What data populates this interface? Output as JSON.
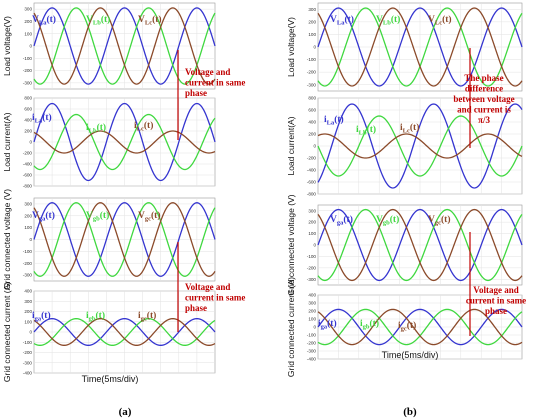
{
  "colors": {
    "phase_a": "#3535d0",
    "phase_b": "#3fd83f",
    "phase_c": "#8b4a2a",
    "annotation": "#c00000"
  },
  "chart_data": [
    {
      "type": "figure-panel",
      "caption": "(a)",
      "xlabel": "Time(5ms/div)",
      "plots": [
        {
          "type": "line",
          "ylabel": "Load voltage(V)",
          "ylim": [
            -350,
            350
          ],
          "yticks": [
            -300,
            -200,
            -100,
            0,
            100,
            200,
            300
          ],
          "phase_shift_deg": 0,
          "series": [
            {
              "name": "V",
              "sub": "La",
              "suffix": "(t)",
              "color_key": "phase_a",
              "amplitude": 310,
              "phase_deg": 0
            },
            {
              "name": "V",
              "sub": "Lb",
              "suffix": "(t)",
              "color_key": "phase_b",
              "amplitude": 310,
              "phase_deg": -120
            },
            {
              "name": "V",
              "sub": "Lc",
              "suffix": "(t)",
              "color_key": "phase_c",
              "amplitude": 310,
              "phase_deg": 120
            }
          ],
          "annotation": [
            "Voltage and",
            "current in same",
            "phase"
          ]
        },
        {
          "type": "line",
          "ylabel": "Load current(A)",
          "ylim": [
            -800,
            800
          ],
          "yticks": [
            -800,
            -600,
            -400,
            -200,
            0,
            200,
            400,
            600,
            800
          ],
          "phase_shift_deg": 0,
          "series": [
            {
              "name": "i",
              "sub": "La",
              "suffix": "(t)",
              "color_key": "phase_a",
              "amplitude": 700,
              "phase_deg": 0
            },
            {
              "name": "i",
              "sub": "Lb",
              "suffix": "(t)",
              "color_key": "phase_b",
              "amplitude": 500,
              "phase_deg": -120
            },
            {
              "name": "i",
              "sub": "Lc",
              "suffix": "(t)",
              "color_key": "phase_c",
              "amplitude": 200,
              "phase_deg": 120
            }
          ]
        },
        {
          "type": "line",
          "ylabel": "Grid connected voltage (V)",
          "ylim": [
            -350,
            350
          ],
          "yticks": [
            -300,
            -200,
            -100,
            0,
            100,
            200,
            300
          ],
          "phase_shift_deg": 0,
          "series": [
            {
              "name": "V",
              "sub": "ga",
              "suffix": "(t)",
              "color_key": "phase_a",
              "amplitude": 310,
              "phase_deg": 0
            },
            {
              "name": "V",
              "sub": "gb",
              "suffix": "(t)",
              "color_key": "phase_b",
              "amplitude": 310,
              "phase_deg": -120
            },
            {
              "name": "V",
              "sub": "gc",
              "suffix": "(t)",
              "color_key": "phase_c",
              "amplitude": 310,
              "phase_deg": 120
            }
          ]
        },
        {
          "type": "line",
          "ylabel": "Grid connected current (A)",
          "ylim": [
            -400,
            400
          ],
          "yticks": [
            -400,
            -300,
            -200,
            -100,
            0,
            100,
            200,
            300,
            400
          ],
          "phase_shift_deg": 0,
          "series": [
            {
              "name": "i",
              "sub": "ga",
              "suffix": "(t)",
              "color_key": "phase_a",
              "amplitude": 130,
              "phase_deg": 0
            },
            {
              "name": "i",
              "sub": "gb",
              "suffix": "(t)",
              "color_key": "phase_b",
              "amplitude": 130,
              "phase_deg": -120
            },
            {
              "name": "i",
              "sub": "gc",
              "suffix": "(t)",
              "color_key": "phase_c",
              "amplitude": 130,
              "phase_deg": 120
            }
          ],
          "annotation": [
            "Voltage and",
            "current in same",
            "phase"
          ]
        }
      ]
    },
    {
      "type": "figure-panel",
      "caption": "(b)",
      "xlabel": "Time(5ms/div)",
      "plots": [
        {
          "type": "line",
          "ylabel": "Load voltage(V)",
          "ylim": [
            -350,
            350
          ],
          "yticks": [
            -300,
            -200,
            -100,
            0,
            100,
            200,
            300
          ],
          "phase_shift_deg": 0,
          "series": [
            {
              "name": "V",
              "sub": "La",
              "suffix": "(t)",
              "color_key": "phase_a",
              "amplitude": 310,
              "phase_deg": 0
            },
            {
              "name": "V",
              "sub": "Lb",
              "suffix": "(t)",
              "color_key": "phase_b",
              "amplitude": 310,
              "phase_deg": -120
            },
            {
              "name": "V",
              "sub": "Lc",
              "suffix": "(t)",
              "color_key": "phase_c",
              "amplitude": 310,
              "phase_deg": 120
            }
          ],
          "annotation": [
            "The phase",
            "difference",
            "between voltage",
            "and current is",
            "π/3"
          ]
        },
        {
          "type": "line",
          "ylabel": "Load current(A)",
          "ylim": [
            -800,
            800
          ],
          "yticks": [
            -800,
            -600,
            -400,
            -200,
            0,
            200,
            400,
            600,
            800
          ],
          "phase_shift_deg": -60,
          "series": [
            {
              "name": "i",
              "sub": "La",
              "suffix": "(t)",
              "color_key": "phase_a",
              "amplitude": 700,
              "phase_deg": 0
            },
            {
              "name": "i",
              "sub": "Lb",
              "suffix": "(t)",
              "color_key": "phase_b",
              "amplitude": 500,
              "phase_deg": -120
            },
            {
              "name": "i",
              "sub": "Lc",
              "suffix": "(t)",
              "color_key": "phase_c",
              "amplitude": 200,
              "phase_deg": 120
            }
          ]
        },
        {
          "type": "line",
          "ylabel": "Grid connected voltage (V)",
          "ylim": [
            -350,
            350
          ],
          "yticks": [
            -300,
            -200,
            -100,
            0,
            100,
            200,
            300
          ],
          "phase_shift_deg": 0,
          "series": [
            {
              "name": "V",
              "sub": "ga",
              "suffix": "(t)",
              "color_key": "phase_a",
              "amplitude": 310,
              "phase_deg": 0
            },
            {
              "name": "V",
              "sub": "gb",
              "suffix": "(t)",
              "color_key": "phase_b",
              "amplitude": 310,
              "phase_deg": -120
            },
            {
              "name": "V",
              "sub": "gc",
              "suffix": "(t)",
              "color_key": "phase_c",
              "amplitude": 310,
              "phase_deg": 120
            }
          ]
        },
        {
          "type": "line",
          "ylabel": "Grid connected current (A)",
          "ylim": [
            -400,
            400
          ],
          "yticks": [
            -400,
            -300,
            -200,
            -100,
            0,
            100,
            200,
            300,
            400
          ],
          "phase_shift_deg": 0,
          "series": [
            {
              "name": "i",
              "sub": "ga",
              "suffix": "(t)",
              "color_key": "phase_a",
              "amplitude": 220,
              "phase_deg": 0
            },
            {
              "name": "i",
              "sub": "gb",
              "suffix": "(t)",
              "color_key": "phase_b",
              "amplitude": 220,
              "phase_deg": -120
            },
            {
              "name": "i",
              "sub": "gc",
              "suffix": "(t)",
              "color_key": "phase_c",
              "amplitude": 220,
              "phase_deg": 120
            }
          ],
          "annotation": [
            "Voltage and",
            "current in same",
            "phase"
          ]
        }
      ]
    }
  ]
}
